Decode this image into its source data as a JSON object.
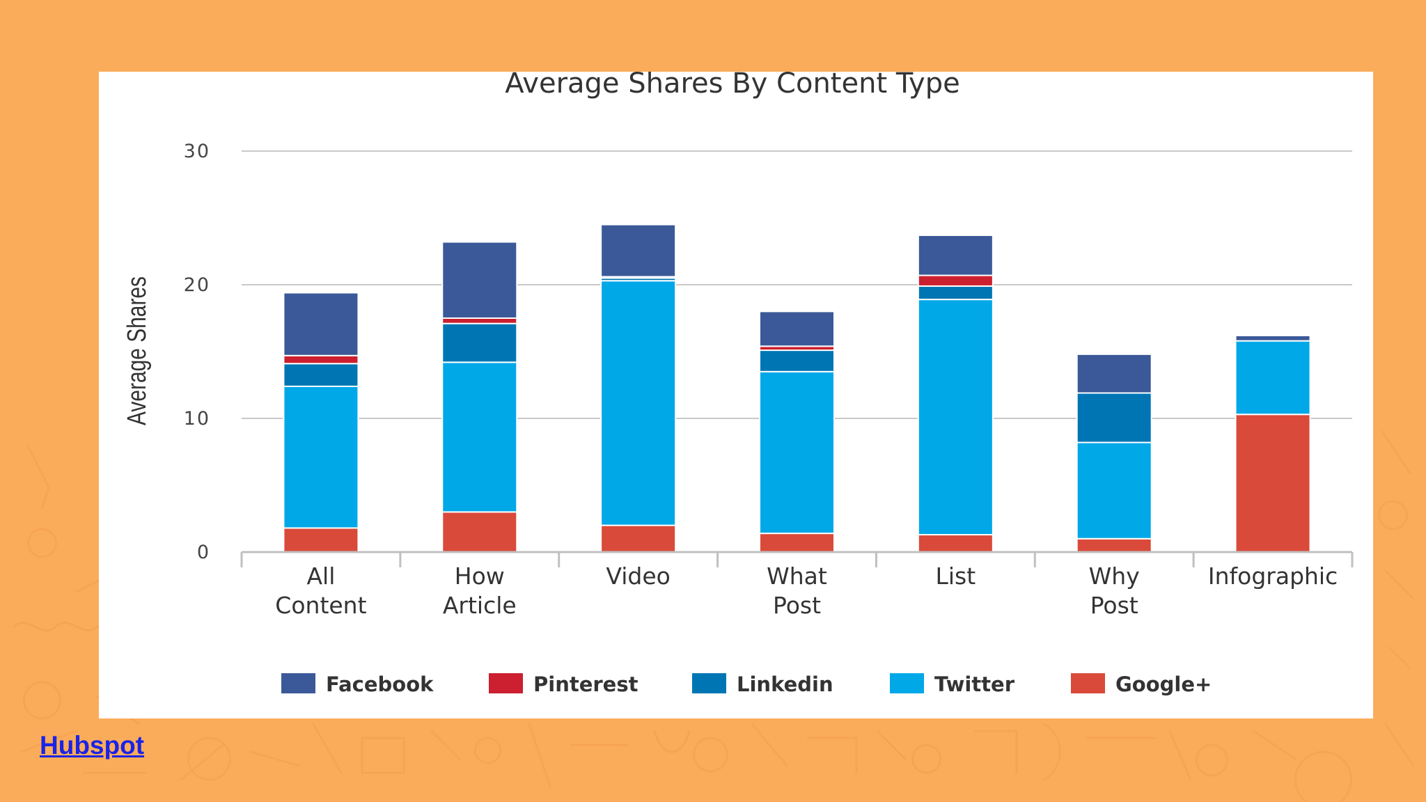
{
  "colors": {
    "page_background": "#fbac5a",
    "panel": "#ffffff",
    "gridline": "#c8c8c8",
    "axis_text": "#444444",
    "link": "#1a24e6"
  },
  "source": {
    "label": "Hubspot"
  },
  "chart_data": {
    "type": "bar",
    "stacked": true,
    "title": "Average Shares By Content Type",
    "xlabel": "",
    "ylabel": "Average Shares",
    "ylim": [
      0,
      30
    ],
    "yticks": [
      0,
      10,
      20,
      30
    ],
    "grid": true,
    "legend_position": "bottom",
    "categories": [
      [
        "All",
        "Content"
      ],
      [
        "How",
        "Article"
      ],
      [
        "Video"
      ],
      [
        "What",
        "Post"
      ],
      [
        "List"
      ],
      [
        "Why",
        "Post"
      ],
      [
        "Infographic"
      ]
    ],
    "series": [
      {
        "name": "Google+",
        "color": "#d94a3a",
        "values": [
          1.8,
          3.0,
          2.0,
          1.4,
          1.3,
          1.0,
          10.3
        ]
      },
      {
        "name": "Twitter",
        "color": "#00a8e8",
        "values": [
          10.6,
          11.2,
          18.3,
          12.1,
          17.6,
          7.2,
          5.5
        ]
      },
      {
        "name": "Linkedin",
        "color": "#0075b4",
        "values": [
          1.7,
          2.9,
          0.2,
          1.6,
          1.0,
          3.7,
          0.0
        ]
      },
      {
        "name": "Pinterest",
        "color": "#cc1f2f",
        "values": [
          0.6,
          0.4,
          0.1,
          0.3,
          0.8,
          0.0,
          0.0
        ]
      },
      {
        "name": "Facebook",
        "color": "#3b5998",
        "values": [
          4.7,
          5.7,
          3.9,
          2.6,
          3.0,
          2.9,
          0.4
        ]
      }
    ],
    "legend_order": [
      "Facebook",
      "Pinterest",
      "Linkedin",
      "Twitter",
      "Google+"
    ]
  }
}
